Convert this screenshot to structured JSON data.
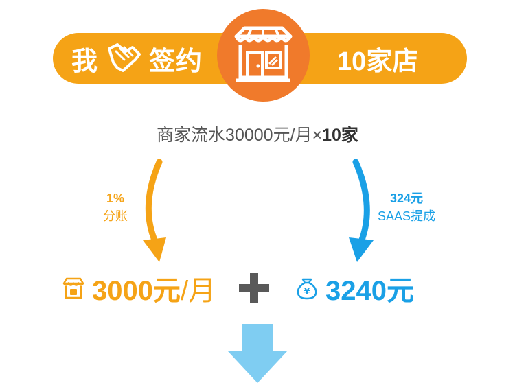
{
  "banner": {
    "left_char1": "我",
    "left_char2": "签约",
    "right_text": "10家店"
  },
  "formula": {
    "prefix": "商家流水30000元/月",
    "times": "×",
    "count": "10家"
  },
  "left_flow": {
    "percent": "1%",
    "label": "分账"
  },
  "right_flow": {
    "amount": "324元",
    "label": "SAAS提成"
  },
  "results": {
    "left_value": "3000元",
    "left_unit": "/月",
    "right_value": "3240元"
  },
  "icons": {
    "handshake": "handshake-icon",
    "storefront": "storefront-icon",
    "small_store": "small-store-icon",
    "money_bag": "money-bag-icon",
    "plus": "plus-icon",
    "down_arrow": "down-arrow-icon"
  },
  "colors": {
    "banner": "#f5a316",
    "store_circle": "#f07a2b",
    "left_accent": "#f5a316",
    "right_accent": "#1aa0e6",
    "plus": "#595959",
    "down_arrow": "#7fcdf2"
  }
}
